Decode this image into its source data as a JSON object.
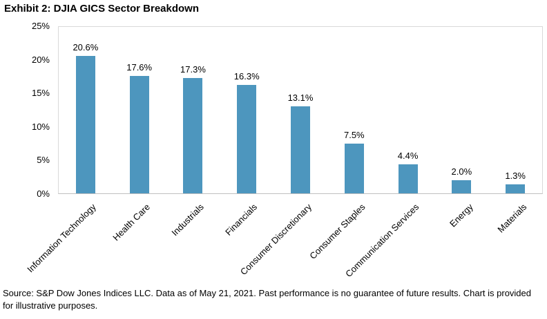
{
  "title": "Exhibit 2: DJIA GICS Sector Breakdown",
  "chart_data": {
    "type": "bar",
    "title": "Exhibit 2: DJIA GICS Sector Breakdown",
    "categories": [
      "Information Technology",
      "Health Care",
      "Industrials",
      "Financials",
      "Consumer Discretionary",
      "Consumer Staples",
      "Communication Services",
      "Energy",
      "Materials"
    ],
    "values": [
      20.6,
      17.6,
      17.3,
      16.3,
      13.1,
      7.5,
      4.4,
      2.0,
      1.3
    ],
    "value_labels": [
      "20.6%",
      "17.6%",
      "17.3%",
      "16.3%",
      "13.1%",
      "7.5%",
      "4.4%",
      "2.0%",
      "1.3%"
    ],
    "xlabel": "",
    "ylabel": "",
    "ylim": [
      0,
      25
    ],
    "y_ticks": [
      "0%",
      "5%",
      "10%",
      "15%",
      "20%",
      "25%"
    ],
    "grid": false,
    "legend_position": "none",
    "bar_color": "#4d96be",
    "plot_border_color": "#d9d9d9",
    "axis_line_color": "#bfbfbf",
    "x_label_rotation_deg": 45
  },
  "footer": {
    "text": "Source: S&P Dow Jones Indices LLC. Data as of May 21, 2021. Past performance is no guarantee of future results. Chart is provided for illustrative purposes."
  }
}
